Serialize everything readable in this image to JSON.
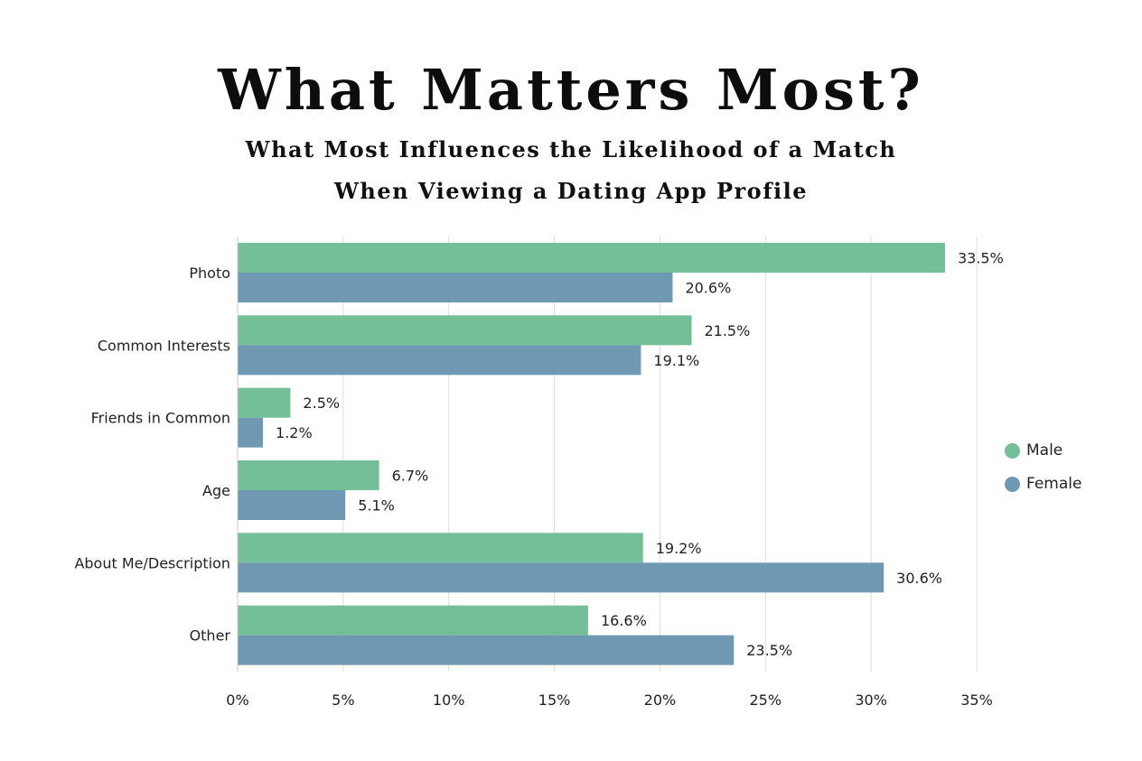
{
  "title": "What Matters Most?",
  "subtitle_line1": "What Most Influences the Likelihood of a Match",
  "subtitle_line2": "When Viewing a Dating App Profile",
  "colors": {
    "male": "#74bf97",
    "female": "#6f98b3",
    "grid": "#dddddd"
  },
  "chart_data": {
    "type": "bar",
    "orientation": "horizontal",
    "title": "What Matters Most?",
    "subtitle": "What Most Influences the Likelihood of a Match When Viewing a Dating App Profile",
    "categories": [
      "Photo",
      "Common Interests",
      "Friends in Common",
      "Age",
      "About Me/Description",
      "Other"
    ],
    "series": [
      {
        "name": "Male",
        "values": [
          33.5,
          21.5,
          2.5,
          6.7,
          19.2,
          16.6
        ],
        "labels": [
          "33.5%",
          "21.5%",
          "2.5%",
          "6.7%",
          "19.2%",
          "16.6%"
        ]
      },
      {
        "name": "Female",
        "values": [
          20.6,
          19.1,
          1.2,
          5.1,
          30.6,
          23.5
        ],
        "labels": [
          "20.6%",
          "19.1%",
          "1.2%",
          "5.1%",
          "30.6%",
          "23.5%"
        ]
      }
    ],
    "xlim": [
      0,
      35
    ],
    "xticks": [
      0,
      5,
      10,
      15,
      20,
      25,
      30,
      35
    ],
    "xtick_labels": [
      "0%",
      "5%",
      "10%",
      "15%",
      "20%",
      "25%",
      "30%",
      "35%"
    ],
    "xlabel": "",
    "ylabel": "",
    "grid": true,
    "legend_position": "right"
  }
}
